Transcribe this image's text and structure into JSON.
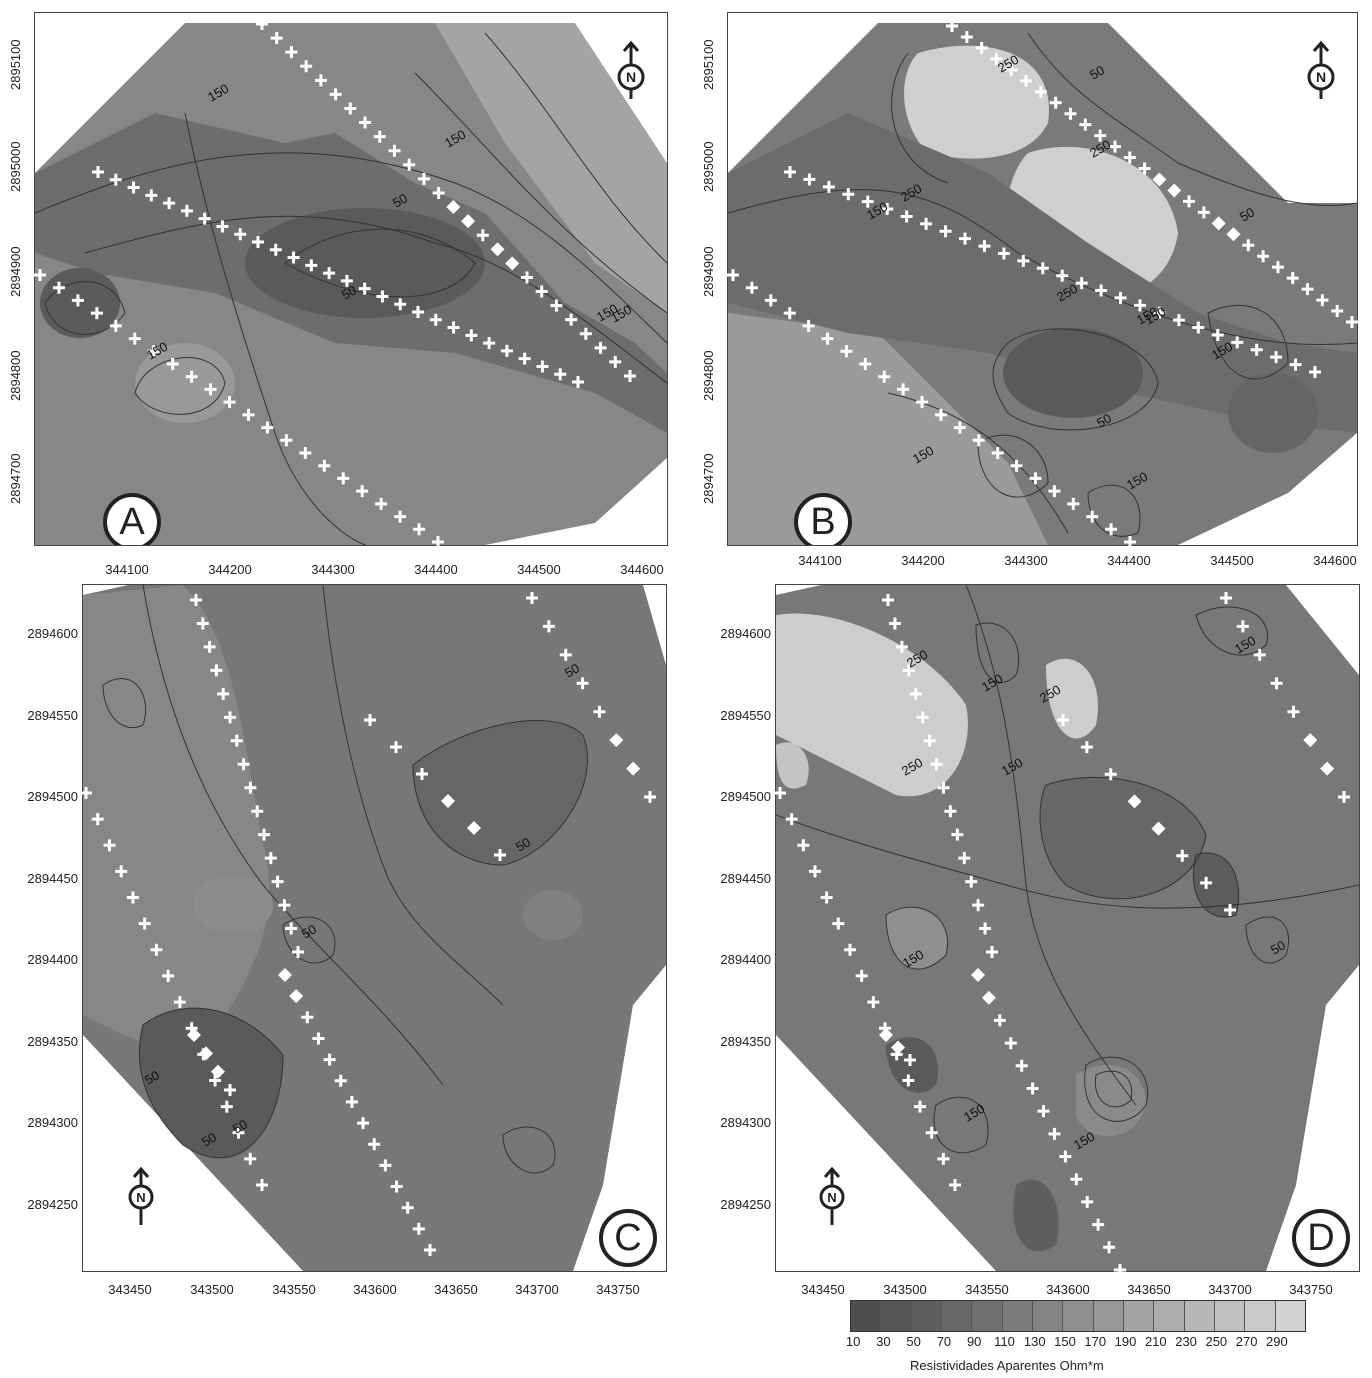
{
  "panels": [
    {
      "letter": "A",
      "x_ticks": [
        "344100",
        "344200",
        "344300",
        "344400",
        "344500",
        "344600"
      ],
      "y_ticks": [
        "2895100",
        "2895000",
        "2894900",
        "2894800",
        "2894700"
      ],
      "contour_labels": [
        "150",
        "150",
        "150",
        "50",
        "50",
        "150",
        "150"
      ]
    },
    {
      "letter": "B",
      "x_ticks": [
        "344100",
        "344200",
        "344300",
        "344400",
        "344500",
        "344600"
      ],
      "y_ticks": [
        "2895100",
        "2895000",
        "2894900",
        "2894800",
        "2894700"
      ],
      "contour_labels": [
        "250",
        "50",
        "150",
        "250",
        "150",
        "250",
        "50",
        "250",
        "150",
        "150",
        "50",
        "150",
        "150"
      ]
    },
    {
      "letter": "C",
      "x_ticks": [
        "343450",
        "343500",
        "343550",
        "343600",
        "343650",
        "343700",
        "343750"
      ],
      "y_ticks": [
        "2894600",
        "2894550",
        "2894500",
        "2894450",
        "2894400",
        "2894350",
        "2894300",
        "2894250"
      ],
      "contour_labels": [
        "50",
        "50",
        "50",
        "50",
        "50",
        "50"
      ]
    },
    {
      "letter": "D",
      "x_ticks": [
        "343450",
        "343500",
        "343550",
        "343600",
        "343650",
        "343700",
        "343750"
      ],
      "y_ticks": [
        "2894600",
        "2894550",
        "2894500",
        "2894450",
        "2894400",
        "2894350",
        "2894300",
        "2894250"
      ],
      "contour_labels": [
        "250",
        "150",
        "250",
        "250",
        "150",
        "150",
        "150",
        "150",
        "150",
        "50"
      ]
    }
  ],
  "north_label": "N",
  "legend": {
    "title": "Resistividades Aparentes Ohm*m",
    "values": [
      "10",
      "30",
      "50",
      "70",
      "90",
      "110",
      "130",
      "150",
      "170",
      "190",
      "210",
      "230",
      "250",
      "270",
      "290"
    ],
    "colors": [
      "#4d4d4d",
      "#555555",
      "#5e5e5e",
      "#676767",
      "#707070",
      "#7a7a7a",
      "#848484",
      "#8e8e8e",
      "#989898",
      "#a3a3a3",
      "#adadad",
      "#b7b7b7",
      "#c1c1c1",
      "#cacaca",
      "#d3d3d3"
    ]
  }
}
